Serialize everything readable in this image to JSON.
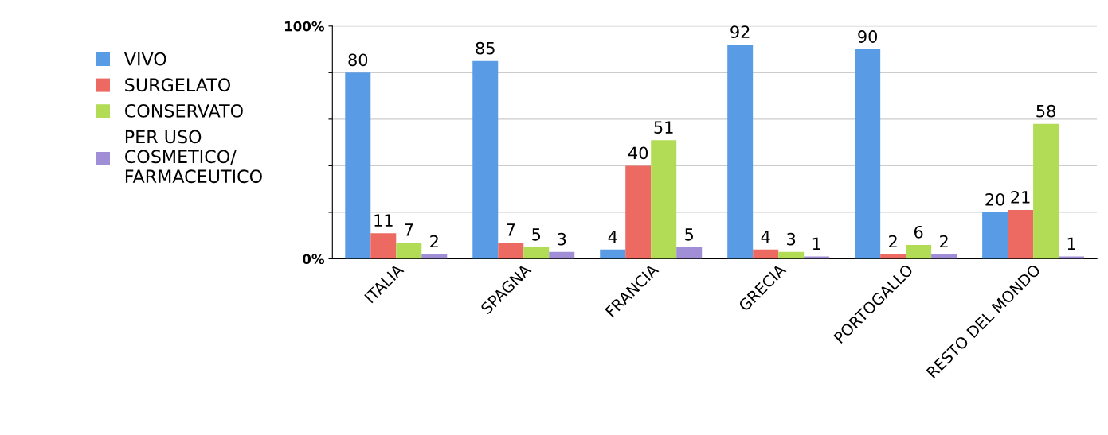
{
  "chart_data": {
    "type": "bar",
    "categories": [
      "ITALIA",
      "SPAGNA",
      "FRANCIA",
      "GRECIA",
      "PORTOGALLO",
      "RESTO DEL MONDO"
    ],
    "series": [
      {
        "name": "VIVO",
        "color": "#5a9be6",
        "values": [
          80,
          85,
          4,
          92,
          90,
          20
        ]
      },
      {
        "name": "SURGELATO",
        "color": "#ec6a62",
        "values": [
          11,
          7,
          40,
          4,
          2,
          21
        ]
      },
      {
        "name": "CONSERVATO",
        "color": "#b2dc55",
        "values": [
          7,
          5,
          51,
          3,
          6,
          58
        ]
      },
      {
        "name": "PER USO\nCOSMETICO/\nFARMACEUTICO",
        "color": "#a08fd6",
        "values": [
          2,
          3,
          5,
          1,
          2,
          1
        ]
      }
    ],
    "ylim": [
      0,
      100
    ],
    "yticks": [
      {
        "value": 0,
        "label": "0%"
      },
      {
        "value": 20,
        "label": null
      },
      {
        "value": 40,
        "label": null
      },
      {
        "value": 60,
        "label": null
      },
      {
        "value": 80,
        "label": null
      },
      {
        "value": 100,
        "label": "100%"
      }
    ],
    "grid": "y",
    "legend": "left",
    "data_labels": true
  }
}
